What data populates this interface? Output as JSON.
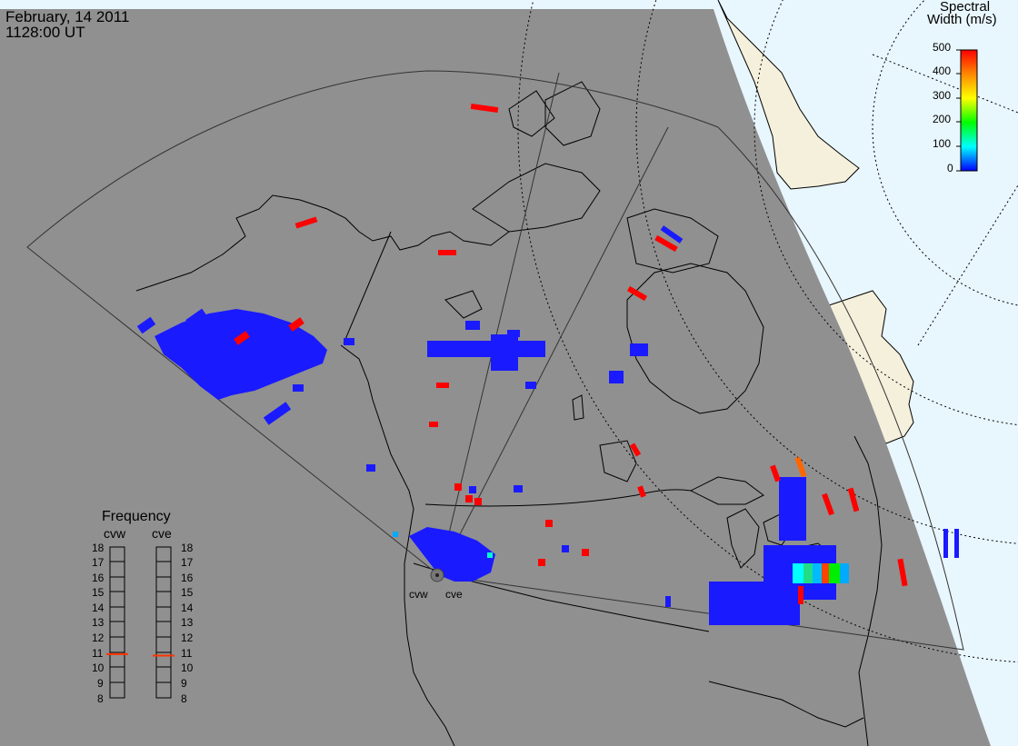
{
  "header": {
    "date": "February, 14 2011",
    "time": "1128:00 UT"
  },
  "colorbar": {
    "title_line1": "Spectral",
    "title_line2": "Width (m/s)",
    "ticks": [
      "500",
      "400",
      "300",
      "200",
      "100",
      "0"
    ],
    "range": [
      0,
      500
    ],
    "colors": [
      "#ff0000",
      "#ff8800",
      "#ffff00",
      "#00ff00",
      "#00ffff",
      "#0000ff"
    ]
  },
  "frequency_panel": {
    "title": "Frequency",
    "radar_labels": [
      "cvw",
      "cve"
    ],
    "ticks": [
      "18",
      "17",
      "16",
      "15",
      "14",
      "13",
      "12",
      "11",
      "10",
      "9",
      "8"
    ],
    "range_mhz": [
      8,
      18
    ],
    "current_mhz": {
      "cvw": 10.9,
      "cve": 10.8
    }
  },
  "radar_sites": [
    "cvw",
    "cve"
  ],
  "colors": {
    "night_side": "#909090",
    "ocean_day": "#e8f6fd",
    "land_day": "#f5f0dc",
    "low_width": "#1a1aff",
    "high_width": "#ff0000"
  }
}
